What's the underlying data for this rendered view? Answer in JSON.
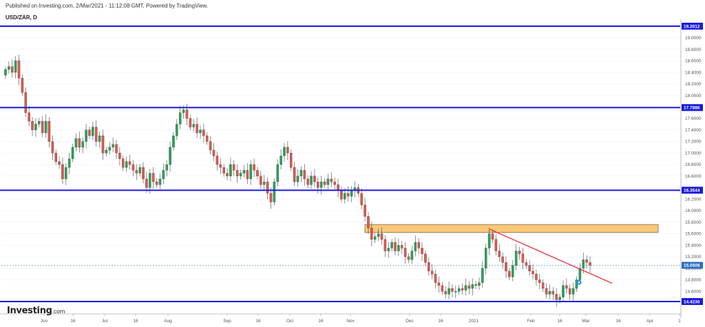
{
  "header": {
    "published": "Published on Investing.com, 2/Mar/2021 - 11:12:08 GMT, Powered by TradingView.",
    "symbol": "USD/ZAR, D"
  },
  "logo": {
    "main": "Investing",
    "suffix": ".com"
  },
  "chart_data": {
    "type": "candlestick",
    "title": "USD/ZAR, D",
    "ylim": [
      14.32,
      19.33
    ],
    "y_ticks": [
      14.6,
      14.8,
      15.0,
      15.2,
      15.4,
      15.6,
      15.8,
      16.0,
      16.2,
      16.6,
      16.8,
      17.0,
      17.2,
      17.4,
      17.6,
      18.0,
      18.2,
      18.4,
      18.6,
      18.8,
      19.0
    ],
    "y_tick_labels": [
      "14.6000",
      "14.8000",
      "15.0000",
      "15.2000",
      "15.4000",
      "15.6000",
      "15.8000",
      "16.0000",
      "16.2000",
      "16.6000",
      "16.8000",
      "17.0000",
      "17.2000",
      "17.4000",
      "17.6000",
      "18.0000",
      "18.2000",
      "18.4000",
      "18.6000",
      "18.8000",
      "19.0000"
    ],
    "x_tick_labels": [
      "Jun",
      "16",
      "Jul",
      "16",
      "Aug",
      "Sep",
      "16",
      "Oct",
      "16",
      "Nov",
      "Dec",
      "16",
      "2021",
      "Feb",
      "16",
      "Mar",
      "16",
      "Apr",
      "1"
    ],
    "horizontal_levels": [
      {
        "value": 19.2012,
        "label": "19.2012"
      },
      {
        "value": 17.7886,
        "label": "17.7886"
      },
      {
        "value": 16.3544,
        "label": "16.3544"
      },
      {
        "value": 14.423,
        "label": "14.4230"
      }
    ],
    "last_price": {
      "value": 15.0508,
      "label": "15.0508"
    },
    "resistance_zone": {
      "low": 15.62,
      "high": 15.76
    },
    "trendline": {
      "from": 15.68,
      "to": 14.74
    },
    "closes": [
      18.45,
      18.5,
      18.4,
      18.6,
      18.3,
      18.05,
      17.7,
      17.55,
      17.4,
      17.5,
      17.55,
      17.35,
      17.55,
      17.2,
      17.0,
      16.85,
      16.8,
      16.55,
      16.75,
      16.9,
      17.1,
      17.25,
      17.1,
      17.2,
      17.4,
      17.3,
      17.45,
      17.2,
      17.3,
      17.0,
      17.05,
      17.1,
      17.15,
      17.0,
      16.9,
      16.75,
      16.85,
      16.8,
      16.7,
      16.65,
      16.75,
      16.55,
      16.4,
      16.65,
      16.5,
      16.45,
      16.55,
      16.7,
      16.8,
      17.1,
      17.3,
      17.5,
      17.7,
      17.75,
      17.6,
      17.45,
      17.5,
      17.35,
      17.4,
      17.3,
      17.2,
      17.05,
      16.95,
      16.8,
      16.75,
      16.65,
      16.6,
      16.8,
      16.7,
      16.6,
      16.65,
      16.7,
      16.55,
      16.8,
      16.7,
      16.6,
      16.45,
      16.5,
      16.3,
      16.15,
      16.5,
      16.8,
      16.95,
      17.1,
      17.0,
      16.75,
      16.5,
      16.6,
      16.7,
      16.55,
      16.45,
      16.6,
      16.5,
      16.4,
      16.5,
      16.45,
      16.55,
      16.5,
      16.45,
      16.35,
      16.2,
      16.3,
      16.25,
      16.35,
      16.4,
      16.3,
      16.1,
      15.9,
      15.7,
      15.5,
      15.55,
      15.6,
      15.5,
      15.3,
      15.35,
      15.45,
      15.3,
      15.4,
      15.35,
      15.2,
      15.15,
      15.3,
      15.45,
      15.35,
      15.25,
      15.1,
      14.95,
      14.9,
      14.75,
      14.7,
      14.6,
      14.55,
      14.65,
      14.6,
      14.6,
      14.65,
      14.62,
      14.7,
      14.65,
      14.72,
      14.7,
      14.75,
      15.0,
      15.35,
      15.6,
      15.5,
      15.3,
      15.2,
      15.1,
      14.95,
      14.85,
      15.05,
      15.3,
      15.25,
      15.1,
      15.05,
      14.95,
      14.9,
      14.8,
      14.75,
      14.65,
      14.55,
      14.6,
      14.55,
      14.45,
      14.5,
      14.7,
      14.65,
      14.55,
      14.65,
      14.8,
      15.0,
      15.15,
      15.1,
      15.05
    ]
  }
}
